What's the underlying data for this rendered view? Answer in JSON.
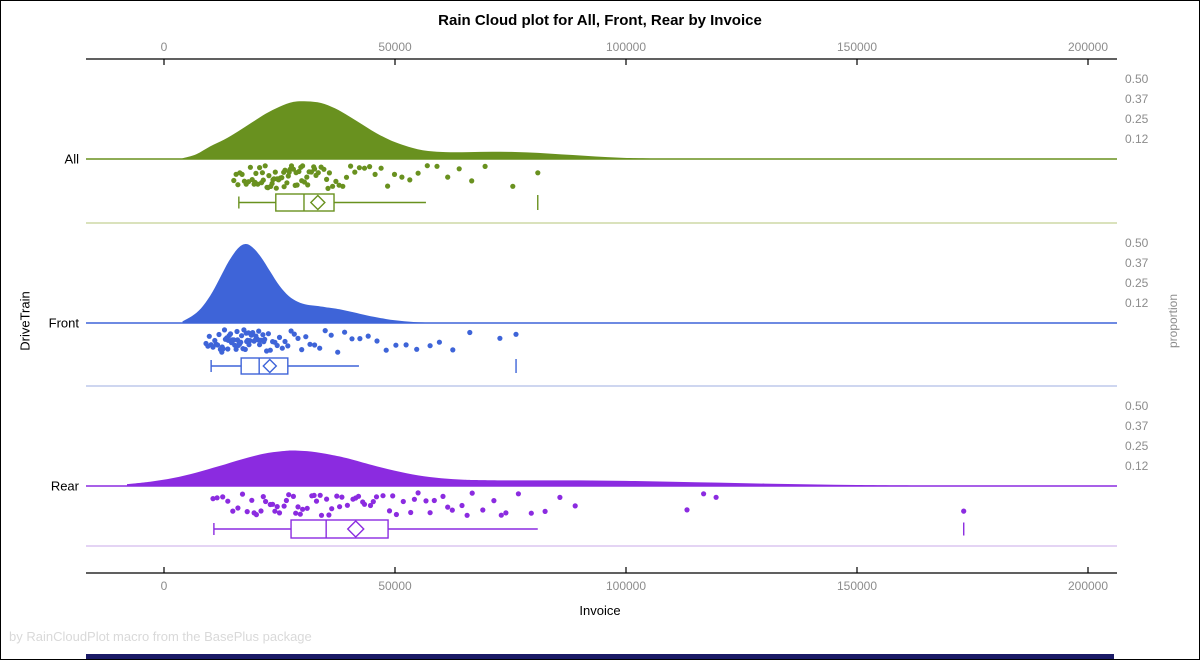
{
  "title": "Rain Cloud plot for All, Front, Rear by Invoice",
  "footer": "by RainCloudPlot macro from the BasePlus package",
  "axes": {
    "x_label": "Invoice",
    "y_label": "DriveTrain",
    "y2_label": "proportion"
  },
  "colors": {
    "bottom_bar": "#1a1a66",
    "axis_line": "#000000",
    "tick_label": "#8c8c8c",
    "category_label": "#000000"
  },
  "chart_data": {
    "type": "raincloud",
    "x_variable": "Invoice",
    "group_variable": "DriveTrain",
    "x_ticks": [
      0,
      50000,
      100000,
      150000,
      200000
    ],
    "x_tick_labels": [
      "0",
      "50000",
      "100000",
      "150000",
      "200000"
    ],
    "xlim": [
      -17000,
      206000
    ],
    "proportion_ticks": [
      0.5,
      0.375,
      0.25,
      0.125
    ],
    "proportion_tick_labels": [
      "0.50",
      "0.37",
      "0.25",
      "0.12"
    ],
    "grid": false,
    "legend": "none",
    "groups": [
      {
        "label": "All",
        "color": "#69911F",
        "light_color": "#cdd8a6",
        "density": {
          "x": [
            4000,
            7000,
            10000,
            13000,
            16000,
            19000,
            22000,
            25000,
            28000,
            31000,
            34000,
            37000,
            40000,
            43000,
            46000,
            49000,
            52000,
            56000,
            61000,
            66000,
            71000,
            76000,
            81000,
            86000,
            91000,
            96000,
            101000,
            109000,
            117000
          ],
          "p": [
            0.005,
            0.03,
            0.079,
            0.121,
            0.172,
            0.228,
            0.283,
            0.327,
            0.357,
            0.36,
            0.35,
            0.317,
            0.268,
            0.214,
            0.161,
            0.117,
            0.085,
            0.055,
            0.043,
            0.043,
            0.045,
            0.044,
            0.038,
            0.029,
            0.02,
            0.012,
            0.006,
            0.002,
            0
          ]
        },
        "points": [
          15100,
          15600,
          16000,
          16400,
          16900,
          17400,
          17800,
          18300,
          18700,
          19100,
          19500,
          19900,
          20300,
          20700,
          21100,
          21500,
          21900,
          22300,
          22700,
          23100,
          23400,
          23800,
          24100,
          24500,
          24800,
          25200,
          25500,
          25900,
          26200,
          26600,
          26900,
          27300,
          27600,
          28000,
          28400,
          28800,
          29200,
          29600,
          30000,
          30400,
          30900,
          31400,
          31900,
          32400,
          32900,
          33400,
          34000,
          34600,
          35200,
          35800,
          36500,
          37200,
          37900,
          38700,
          39500,
          40400,
          41300,
          42300,
          43400,
          44500,
          45700,
          47000,
          48400,
          49900,
          51500,
          53200,
          55000,
          57000,
          59100,
          61400,
          63900,
          66600,
          69500,
          75500,
          80900,
          21300,
          23600,
          26000,
          28600,
          31100,
          24300,
          19700,
          22500,
          27100,
          29800,
          32600,
          35500
        ],
        "box": {
          "low": 16200,
          "q1": 24200,
          "median": 30300,
          "mean": 33300,
          "q3": 36800,
          "high": 56700,
          "far_outlier": 80900
        }
      },
      {
        "label": "Front",
        "color": "#3E64D8",
        "light_color": "#bdc9ec",
        "density": {
          "x": [
            4000,
            6000,
            8000,
            10000,
            12000,
            14000,
            16000,
            17500,
            19000,
            21000,
            23000,
            25000,
            27000,
            29000,
            31000,
            33000,
            35000,
            38000,
            41000,
            44000,
            48000,
            52000,
            56000,
            60000
          ],
          "p": [
            0.01,
            0.042,
            0.091,
            0.17,
            0.275,
            0.385,
            0.466,
            0.493,
            0.477,
            0.412,
            0.321,
            0.233,
            0.169,
            0.132,
            0.114,
            0.107,
            0.099,
            0.086,
            0.067,
            0.047,
            0.025,
            0.011,
            0.004,
            0
          ]
        },
        "points": [
          9100,
          9500,
          9800,
          10200,
          10600,
          11000,
          11300,
          11600,
          11900,
          12200,
          12500,
          12800,
          13100,
          13300,
          13600,
          13800,
          14100,
          14300,
          14600,
          14800,
          15100,
          15300,
          15600,
          15800,
          16100,
          16300,
          16600,
          16800,
          17100,
          17300,
          17600,
          17800,
          18100,
          18300,
          18600,
          18900,
          19200,
          19500,
          19800,
          20100,
          20400,
          20700,
          21000,
          21400,
          21800,
          22200,
          22600,
          23000,
          23500,
          24000,
          24500,
          25000,
          25600,
          26200,
          26800,
          27500,
          28200,
          29000,
          29800,
          30700,
          31600,
          32600,
          33700,
          34900,
          36200,
          37600,
          39100,
          40700,
          42400,
          44200,
          46100,
          48100,
          50200,
          52400,
          54700,
          57600,
          59600,
          62500,
          66200,
          72700,
          76200,
          13900,
          15900,
          17900,
          19900,
          21600,
          16400,
          14400,
          18400,
          12600,
          20500
        ],
        "box": {
          "low": 10200,
          "q1": 16700,
          "median": 20600,
          "mean": 22900,
          "q3": 26800,
          "high": 42200,
          "far_outlier": 76200
        }
      },
      {
        "label": "Rear",
        "color": "#8B2BE0",
        "light_color": "#dcc6f0",
        "density": {
          "x": [
            -8000,
            -3000,
            2000,
            7000,
            12000,
            17000,
            22000,
            26000,
            28000,
            32000,
            36000,
            40000,
            45000,
            50000,
            55000,
            60000,
            65000,
            70000,
            80000,
            90000,
            100000,
            110000,
            120000,
            130000,
            140000,
            150000,
            160000,
            175000,
            190000,
            203000
          ],
          "p": [
            0.012,
            0.027,
            0.05,
            0.084,
            0.125,
            0.168,
            0.204,
            0.219,
            0.222,
            0.215,
            0.196,
            0.171,
            0.131,
            0.095,
            0.066,
            0.049,
            0.039,
            0.036,
            0.035,
            0.035,
            0.032,
            0.027,
            0.021,
            0.015,
            0.01,
            0.006,
            0.0035,
            0.0013,
            0.0004,
            0
          ]
        },
        "points": [
          10600,
          11500,
          12700,
          13800,
          14900,
          16000,
          17000,
          18000,
          19000,
          20000,
          21000,
          22000,
          23000,
          24000,
          25000,
          26000,
          27000,
          28000,
          29000,
          30000,
          31000,
          32000,
          33000,
          34100,
          35200,
          36300,
          37400,
          38500,
          39700,
          40900,
          42100,
          43400,
          44700,
          46000,
          47400,
          48800,
          50300,
          51800,
          53400,
          55000,
          56700,
          58500,
          60400,
          62400,
          64500,
          66700,
          69000,
          71400,
          74000,
          76700,
          79500,
          82500,
          85700,
          89000,
          113200,
          116800,
          119500,
          173100,
          23500,
          26500,
          29500,
          32500,
          35700,
          41500,
          45300,
          49500,
          54200,
          61400,
          28500,
          24500,
          33800,
          38000,
          43000,
          57600,
          65600,
          73000,
          21500,
          19500
        ],
        "box": {
          "low": 10800,
          "q1": 27500,
          "median": 35100,
          "mean": 41500,
          "q3": 48500,
          "high": 80900,
          "far_outlier": 173100
        }
      }
    ]
  }
}
